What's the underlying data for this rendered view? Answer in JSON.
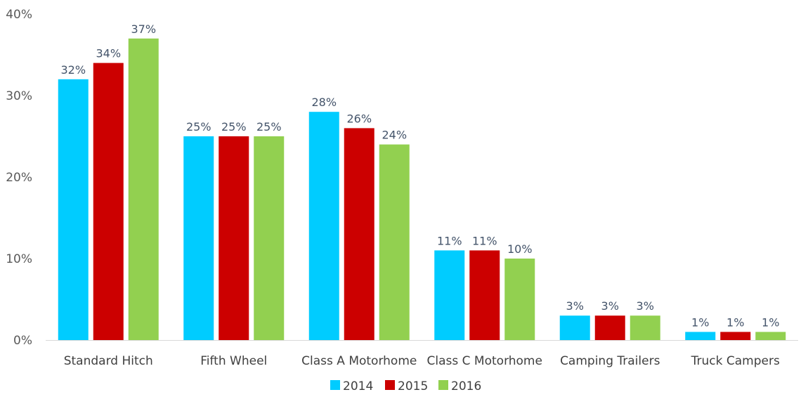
{
  "chart_data": {
    "type": "bar",
    "title": "",
    "xlabel": "",
    "ylabel": "",
    "categories": [
      "Standard Hitch",
      "Fifth Wheel",
      "Class A Motorhome",
      "Class C Motorhome",
      "Camping Trailers",
      "Truck Campers"
    ],
    "series": [
      {
        "name": "2014",
        "color": "#00CCFF",
        "values": [
          32,
          25,
          28,
          11,
          3,
          1
        ]
      },
      {
        "name": "2015",
        "color": "#CC0000",
        "values": [
          34,
          25,
          26,
          11,
          3,
          1
        ]
      },
      {
        "name": "2016",
        "color": "#92D050",
        "values": [
          37,
          25,
          24,
          10,
          3,
          1
        ]
      }
    ],
    "ylim": [
      0,
      40
    ],
    "yticks": [
      0,
      10,
      20,
      30,
      40
    ],
    "ytick_labels": [
      "0%",
      "10%",
      "20%",
      "30%",
      "40%"
    ],
    "data_labels": [
      [
        "32%",
        "25%",
        "28%",
        "11%",
        "3%",
        "1%"
      ],
      [
        "34%",
        "25%",
        "26%",
        "11%",
        "3%",
        "1%"
      ],
      [
        "37%",
        "25%",
        "24%",
        "10%",
        "3%",
        "1%"
      ]
    ],
    "grid": false,
    "legend": "bottom"
  }
}
